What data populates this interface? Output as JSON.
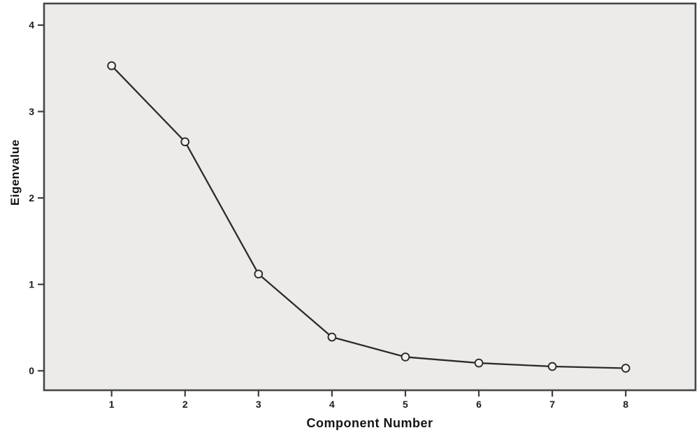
{
  "chart_data": {
    "type": "line",
    "title": "",
    "xlabel": "Component Number",
    "ylabel": "Eigenvalue",
    "categories": [
      1,
      2,
      3,
      4,
      5,
      6,
      7,
      8
    ],
    "series": [
      {
        "name": "Eigenvalue",
        "values": [
          3.53,
          2.65,
          1.12,
          0.39,
          0.16,
          0.09,
          0.05,
          0.03
        ]
      }
    ],
    "yticks": [
      0,
      1,
      2,
      3,
      4
    ],
    "xticks": [
      1,
      2,
      3,
      4,
      5,
      6,
      7,
      8
    ],
    "ylim": [
      -0.225,
      4.25
    ],
    "xlim": [
      0.08,
      8.95
    ],
    "grid": false,
    "legend": "none",
    "marker": "open-circle",
    "colors": {
      "plot_bg": "#edebea",
      "frame": "#474747",
      "line": "#2b2b2b",
      "marker_fill": "#f2f1f0",
      "tick": "#3f3f3f",
      "text": "#1c1c1c"
    }
  }
}
